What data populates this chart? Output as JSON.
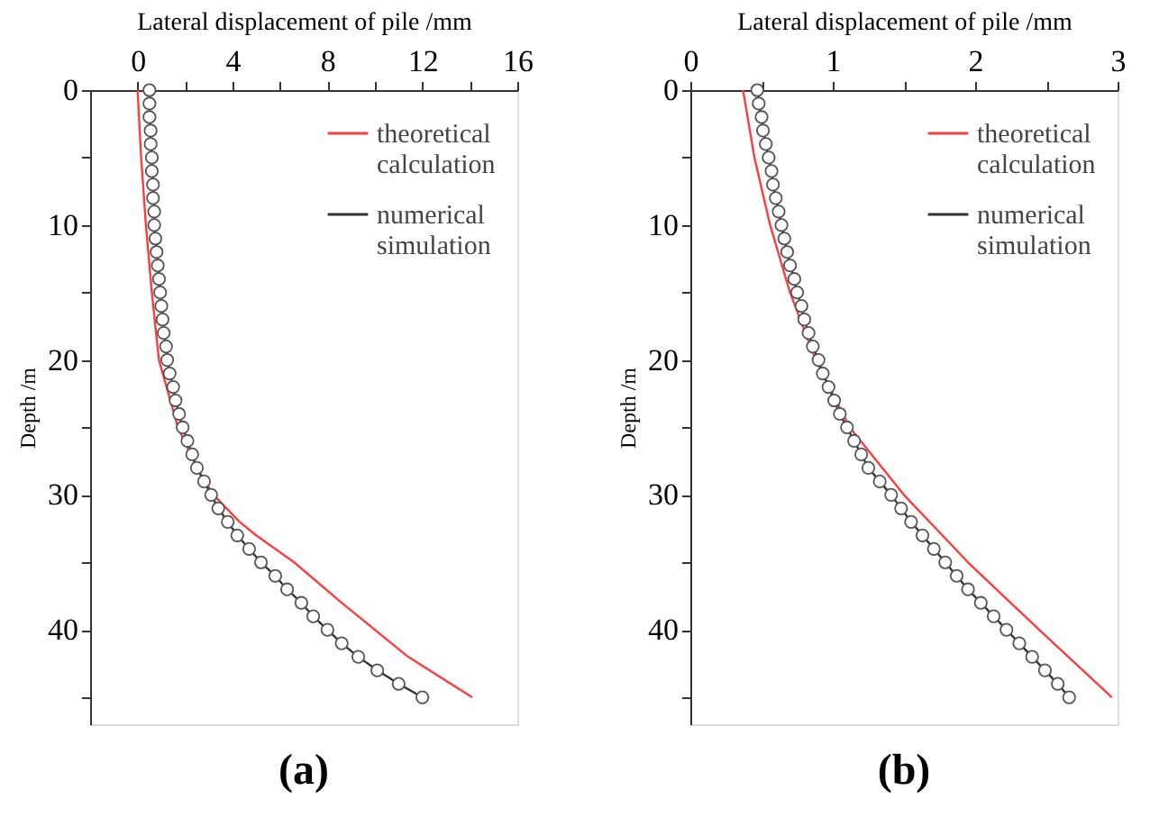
{
  "chart_data": [
    {
      "type": "line",
      "xlabel": "Lateral displacement of pile /mm",
      "ylabel": "Depth /m",
      "annotations": [
        "(a)"
      ],
      "xlim": [
        -2,
        16
      ],
      "xticks": [
        0,
        {
          "value": 2,
          "label": null
        },
        4,
        {
          "value": 6,
          "label": null
        },
        8,
        {
          "value": 10,
          "label": null
        },
        12,
        {
          "value": 14,
          "label": null
        },
        16
      ],
      "ylim": [
        47,
        0
      ],
      "yticks": [
        0,
        {
          "value": 5,
          "label": null
        },
        10,
        {
          "value": 15,
          "label": null
        },
        20,
        {
          "value": 25,
          "label": null
        },
        30,
        {
          "value": 35,
          "label": null
        },
        40,
        {
          "value": 45,
          "label": null
        }
      ],
      "grid": false,
      "legend": "top right",
      "line_style": "solid",
      "series": [
        {
          "name": "theoretical calculation",
          "color": "#ff3b3b",
          "marker": "none",
          "x": [
            0.0,
            0.15,
            0.35,
            0.6,
            0.9,
            1.7,
            2.5,
            3.2,
            4.3,
            5.0,
            6.6,
            8.6,
            10.0,
            11.4,
            14.1
          ],
          "values": [
            0,
            5,
            10,
            15,
            20,
            25,
            28,
            30,
            32,
            33,
            35,
            38,
            40,
            42,
            45
          ]
        },
        {
          "name": "numerical simulation",
          "color": "#333333",
          "marker": "circle",
          "x": [
            0.5,
            0.5,
            0.5,
            0.55,
            0.55,
            0.6,
            0.6,
            0.65,
            0.65,
            0.7,
            0.7,
            0.75,
            0.8,
            0.85,
            0.9,
            0.95,
            1.0,
            1.05,
            1.1,
            1.2,
            1.25,
            1.35,
            1.5,
            1.6,
            1.75,
            1.9,
            2.1,
            2.3,
            2.5,
            2.8,
            3.1,
            3.4,
            3.8,
            4.2,
            4.7,
            5.2,
            5.8,
            6.3,
            6.9,
            7.4,
            8.0,
            8.6,
            9.3,
            10.1,
            11.0,
            12.0
          ],
          "values": [
            0,
            1,
            2,
            3,
            4,
            5,
            6,
            7,
            8,
            9,
            10,
            11,
            12,
            13,
            14,
            15,
            16,
            17,
            18,
            19,
            20,
            21,
            22,
            23,
            24,
            25,
            26,
            27,
            28,
            29,
            30,
            31,
            32,
            33,
            34,
            35,
            36,
            37,
            38,
            39,
            40,
            41,
            42,
            43,
            44,
            45
          ]
        }
      ]
    },
    {
      "type": "line",
      "xlabel": "Lateral displacement of pile /mm",
      "ylabel": "Depth /m",
      "annotations": [
        "(b)"
      ],
      "xlim": [
        0,
        3
      ],
      "xticks": [
        0,
        {
          "value": 0.5,
          "label": null
        },
        1,
        {
          "value": 1.5,
          "label": null
        },
        2,
        {
          "value": 2.5,
          "label": null
        },
        3
      ],
      "ylim": [
        47,
        0
      ],
      "yticks": [
        0,
        {
          "value": 5,
          "label": null
        },
        10,
        {
          "value": 15,
          "label": null
        },
        20,
        {
          "value": 25,
          "label": null
        },
        30,
        {
          "value": 35,
          "label": null
        },
        40,
        {
          "value": 45,
          "label": null
        }
      ],
      "grid": false,
      "legend": "top right",
      "line_style": "solid",
      "series": [
        {
          "name": "theoretical calculation",
          "color": "#ff3b3b",
          "marker": "none",
          "x": [
            0.37,
            0.45,
            0.56,
            0.7,
            0.88,
            1.12,
            1.5,
            1.95,
            2.45,
            2.96
          ],
          "values": [
            0,
            5,
            10,
            15,
            20,
            25,
            30,
            35,
            40,
            45
          ]
        },
        {
          "name": "numerical simulation",
          "color": "#333333",
          "marker": "circle",
          "x": [
            0.47,
            0.48,
            0.5,
            0.51,
            0.53,
            0.55,
            0.57,
            0.58,
            0.6,
            0.62,
            0.64,
            0.66,
            0.68,
            0.7,
            0.73,
            0.75,
            0.78,
            0.8,
            0.83,
            0.86,
            0.9,
            0.93,
            0.97,
            1.01,
            1.05,
            1.1,
            1.15,
            1.2,
            1.25,
            1.33,
            1.41,
            1.48,
            1.55,
            1.63,
            1.71,
            1.79,
            1.87,
            1.95,
            2.04,
            2.13,
            2.22,
            2.31,
            2.4,
            2.49,
            2.58,
            2.66
          ],
          "values": [
            0,
            1,
            2,
            3,
            4,
            5,
            6,
            7,
            8,
            9,
            10,
            11,
            12,
            13,
            14,
            15,
            16,
            17,
            18,
            19,
            20,
            21,
            22,
            23,
            24,
            25,
            26,
            27,
            28,
            29,
            30,
            31,
            32,
            33,
            34,
            35,
            36,
            37,
            38,
            39,
            40,
            41,
            42,
            43,
            44,
            45
          ]
        }
      ]
    }
  ]
}
